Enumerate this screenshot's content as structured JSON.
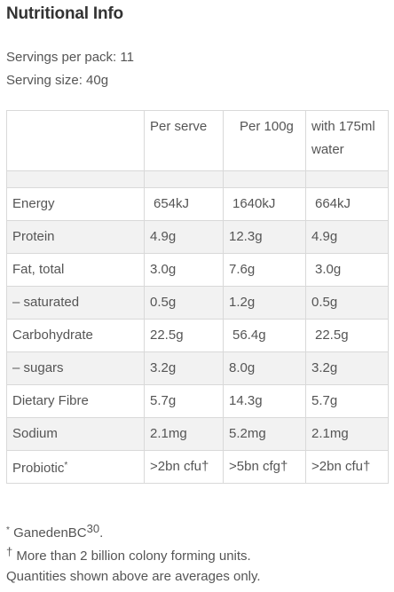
{
  "title": "Nutritional Info",
  "servings_line": "Servings per pack: 11",
  "serving_size_line": "Serving size: 40g",
  "table": {
    "columns": [
      "",
      "Per serve",
      "Per 100g",
      "with 175ml water"
    ],
    "rows": [
      {
        "label": "Energy",
        "per_serve": "654kJ",
        "per_100g": "1640kJ",
        "with_water": "664kJ"
      },
      {
        "label": "Protein",
        "per_serve": "4.9g",
        "per_100g": "12.3g",
        "with_water": "4.9g"
      },
      {
        "label": "Fat, total",
        "per_serve": "3.0g",
        "per_100g": "7.6g",
        "with_water": "3.0g"
      },
      {
        "label": "– saturated",
        "per_serve": "0.5g",
        "per_100g": "1.2g",
        "with_water": "0.5g"
      },
      {
        "label": "Carbohydrate",
        "per_serve": "22.5g",
        "per_100g": "56.4g",
        "with_water": "22.5g"
      },
      {
        "label": "– sugars",
        "per_serve": "3.2g",
        "per_100g": "8.0g",
        "with_water": "3.2g"
      },
      {
        "label": "Dietary Fibre",
        "per_serve": "5.7g",
        "per_100g": "14.3g",
        "with_water": "5.7g"
      },
      {
        "label": "Sodium",
        "per_serve": "2.1mg",
        "per_100g": "5.2mg",
        "with_water": "2.1mg"
      },
      {
        "label": "Probiotic",
        "label_mark": "*",
        "per_serve": ">2bn cfu†",
        "per_100g": ">5bn cfg†",
        "with_water": ">2bn cfu†"
      }
    ]
  },
  "footnotes": {
    "f1_mark": "*",
    "f1_text": " GanedenBC",
    "f1_sup": "30",
    "f1_end": ".",
    "f2_mark": "†",
    "f2_text": " More than 2 billion colony forming units.",
    "f3_text": "Quantities shown above are averages only."
  }
}
